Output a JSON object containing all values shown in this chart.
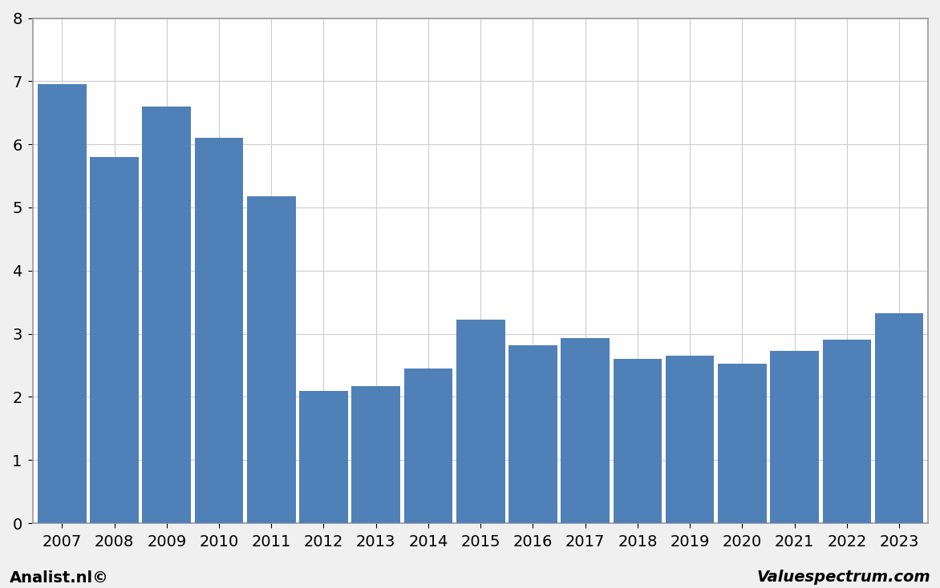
{
  "years": [
    2007,
    2008,
    2009,
    2010,
    2011,
    2012,
    2013,
    2014,
    2015,
    2016,
    2017,
    2018,
    2019,
    2020,
    2021,
    2022,
    2023
  ],
  "values": [
    6.95,
    5.8,
    6.6,
    6.1,
    5.18,
    2.09,
    2.17,
    2.45,
    3.22,
    2.82,
    2.93,
    2.6,
    2.65,
    2.52,
    2.73,
    2.91,
    3.33
  ],
  "bar_color": "#5080b8",
  "background_color": "#f0f0f0",
  "plot_bg_color": "#ffffff",
  "border_color": "#999999",
  "ylim": [
    0,
    8
  ],
  "yticks": [
    0,
    1,
    2,
    3,
    4,
    5,
    6,
    7,
    8
  ],
  "footer_left": "Analist.nl©",
  "footer_right": "Valuespectrum.com",
  "footer_fontsize": 14,
  "grid_color": "#cccccc",
  "tick_fontsize": 14
}
